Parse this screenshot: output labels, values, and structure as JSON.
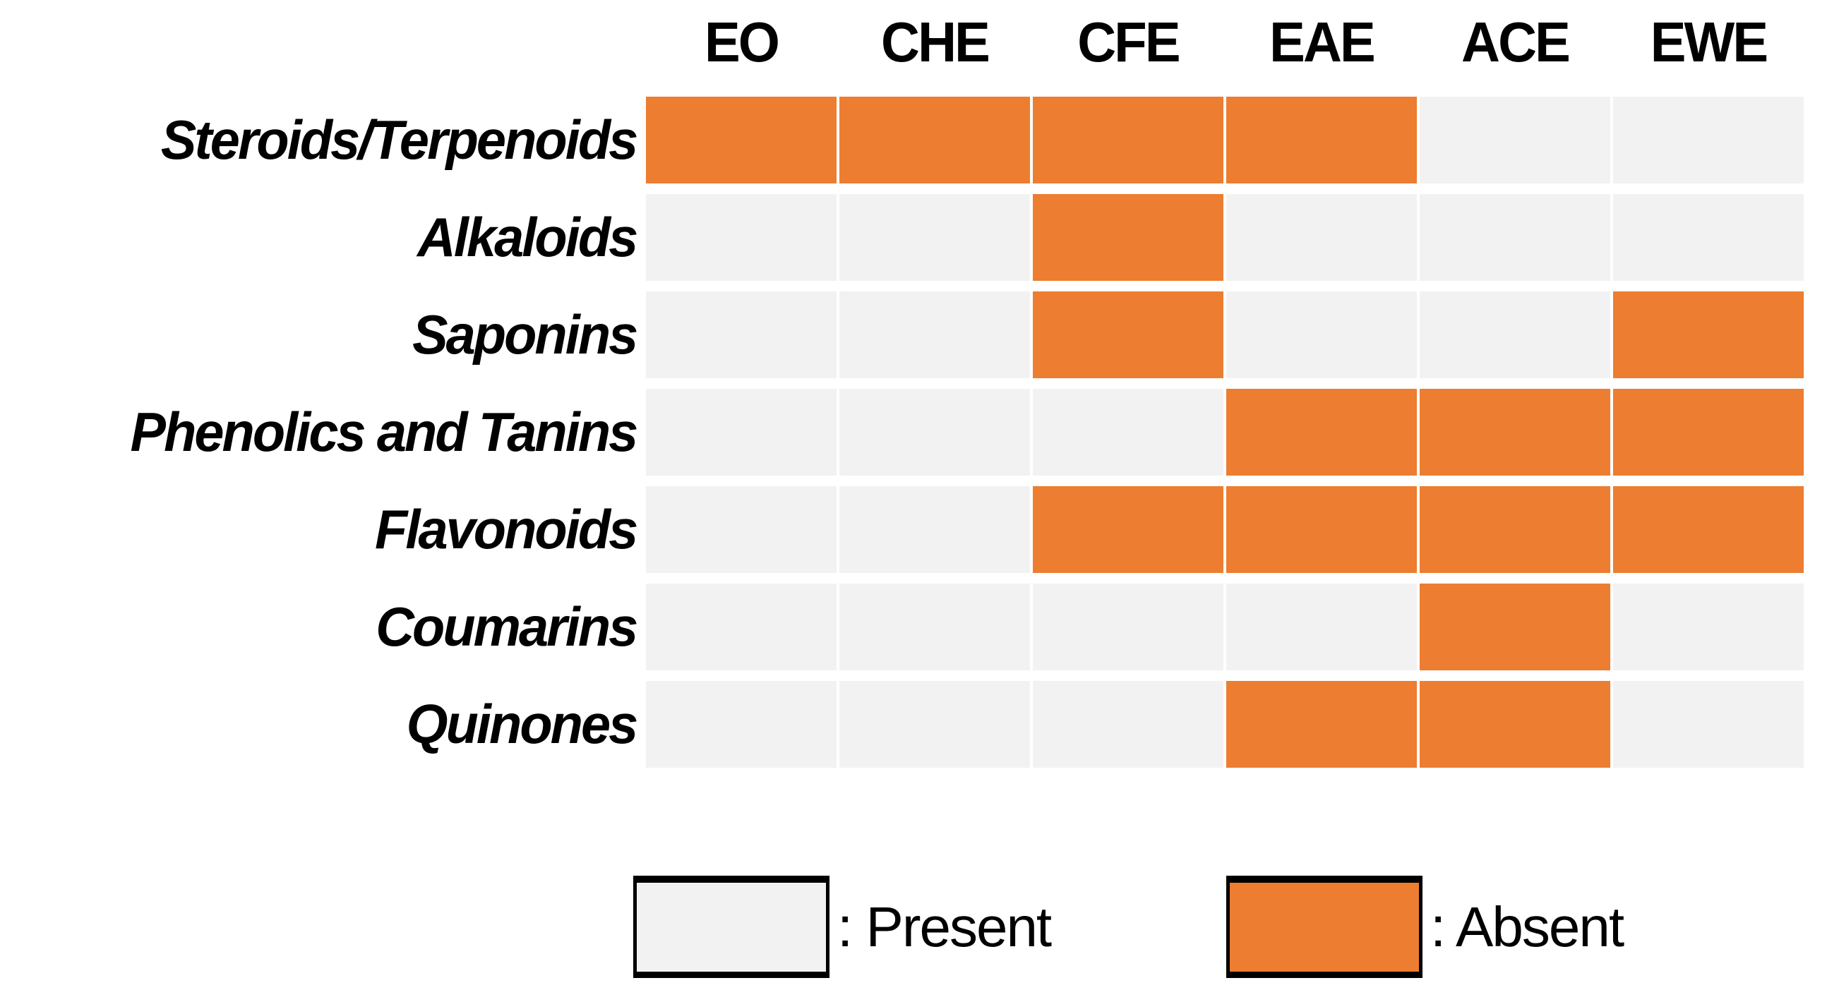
{
  "chart_data": {
    "type": "heatmap",
    "title": "",
    "columns": [
      "EO",
      "CHE",
      "CFE",
      "EAE",
      "ACE",
      "EWE"
    ],
    "rows": [
      "Steroids/Terpenoids",
      "Alkaloids",
      "Saponins",
      "Phenolics and Tanins",
      "Flavonoids",
      "Coumarins",
      "Quinones"
    ],
    "matrix": [
      [
        1,
        1,
        1,
        1,
        0,
        0
      ],
      [
        0,
        0,
        1,
        0,
        0,
        0
      ],
      [
        0,
        0,
        1,
        0,
        0,
        1
      ],
      [
        0,
        0,
        0,
        1,
        1,
        1
      ],
      [
        0,
        0,
        1,
        1,
        1,
        1
      ],
      [
        0,
        0,
        0,
        0,
        1,
        0
      ],
      [
        0,
        0,
        0,
        1,
        1,
        0
      ]
    ],
    "value_meaning": {
      "0": "Present",
      "1": "Absent"
    },
    "colors": {
      "present": "#F2F2F2",
      "absent": "#ED7D31",
      "gridline": "#FFFFFF",
      "text": "#000000"
    },
    "layout": {
      "grid_gaps": true,
      "legend_position": "bottom"
    },
    "legend": [
      {
        "label": ": Present",
        "swatch": "present"
      },
      {
        "label": ": Absent",
        "swatch": "absent"
      }
    ]
  }
}
